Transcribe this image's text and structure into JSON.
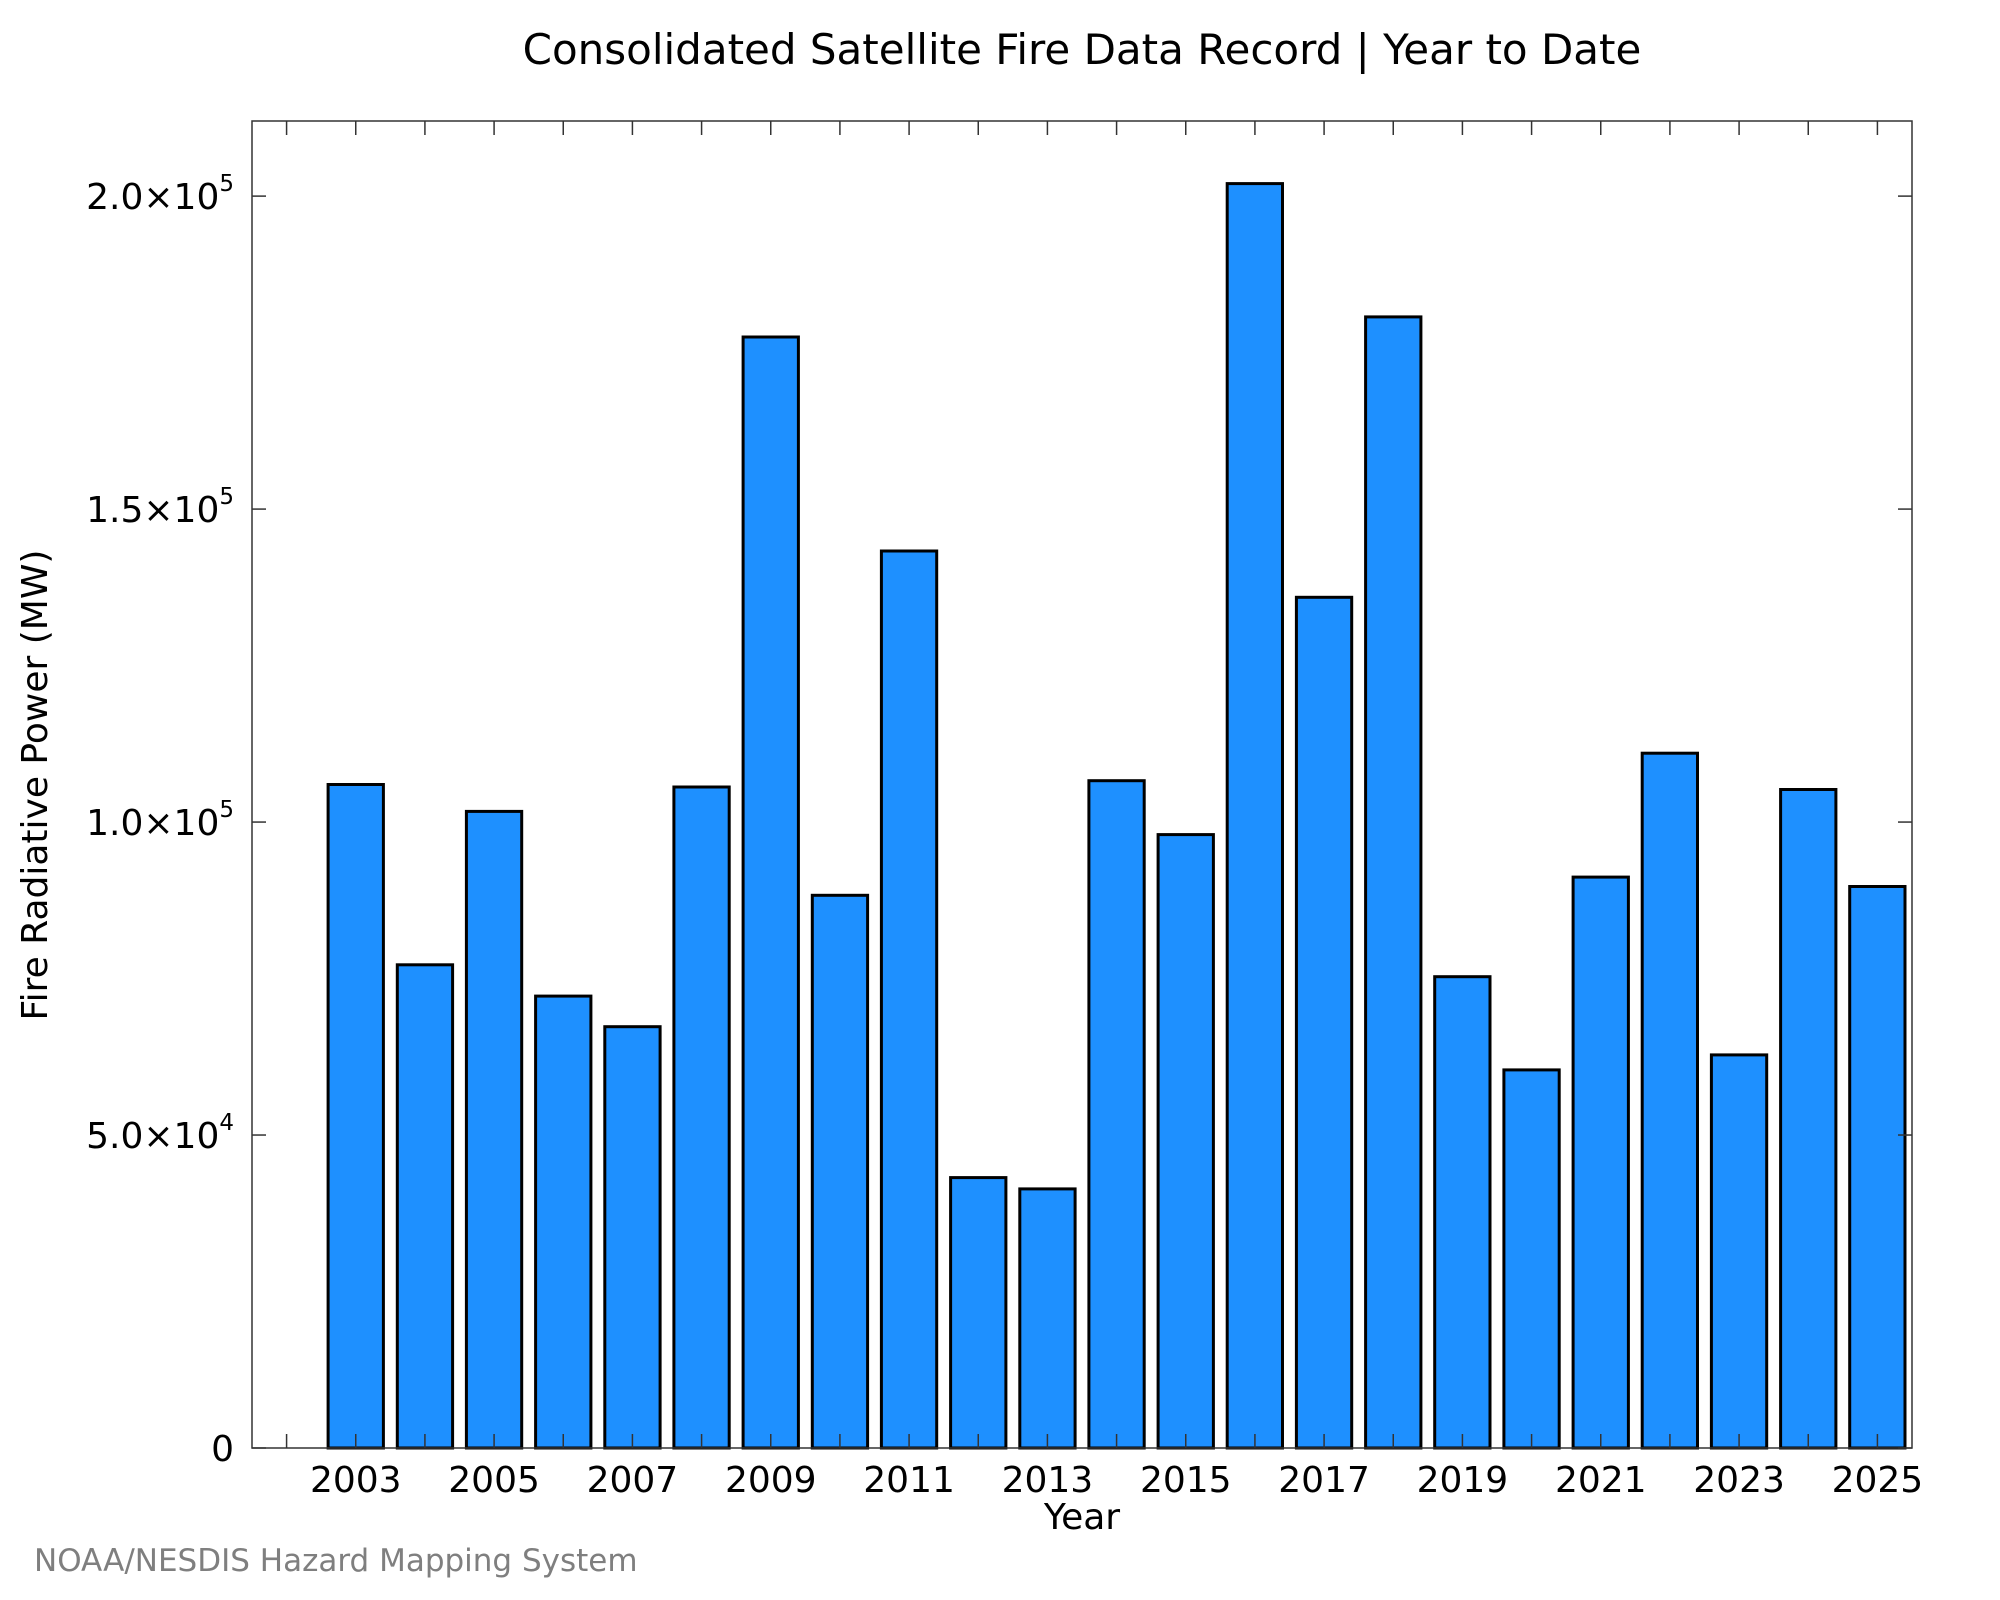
{
  "chart_data": {
    "type": "bar",
    "title": "Consolidated Satellite Fire Data Record | Year to Date",
    "xlabel": "Year",
    "ylabel": "Fire Radiative Power (MW)",
    "credit": "NOAA/NESDIS Hazard Mapping System",
    "categories": [
      2003,
      2004,
      2005,
      2006,
      2007,
      2008,
      2009,
      2010,
      2011,
      2012,
      2013,
      2014,
      2015,
      2016,
      2017,
      2018,
      2019,
      2020,
      2021,
      2022,
      2023,
      2024,
      2025
    ],
    "values": [
      106000,
      77200,
      101700,
      72200,
      67300,
      105600,
      177500,
      88300,
      143300,
      43200,
      41400,
      106600,
      98000,
      202000,
      135900,
      180700,
      75300,
      60400,
      91200,
      111000,
      62800,
      105200,
      89700
    ],
    "ylim": [
      0,
      212000
    ],
    "xlim": [
      2001.5,
      2025.5
    ],
    "y_ticks": [
      {
        "value": 0,
        "mantissa": "0",
        "exponent": ""
      },
      {
        "value": 50000,
        "mantissa": "5.0×10",
        "exponent": "4"
      },
      {
        "value": 100000,
        "mantissa": "1.0×10",
        "exponent": "5"
      },
      {
        "value": 150000,
        "mantissa": "1.5×10",
        "exponent": "5"
      },
      {
        "value": 200000,
        "mantissa": "2.0×10",
        "exponent": "5"
      }
    ],
    "x_ticks": [
      2003,
      2005,
      2007,
      2009,
      2011,
      2013,
      2015,
      2017,
      2019,
      2021,
      2023,
      2025
    ],
    "grid": false,
    "legend": "none",
    "bar_color": "#1e90ff",
    "edge_color": "#000000"
  }
}
